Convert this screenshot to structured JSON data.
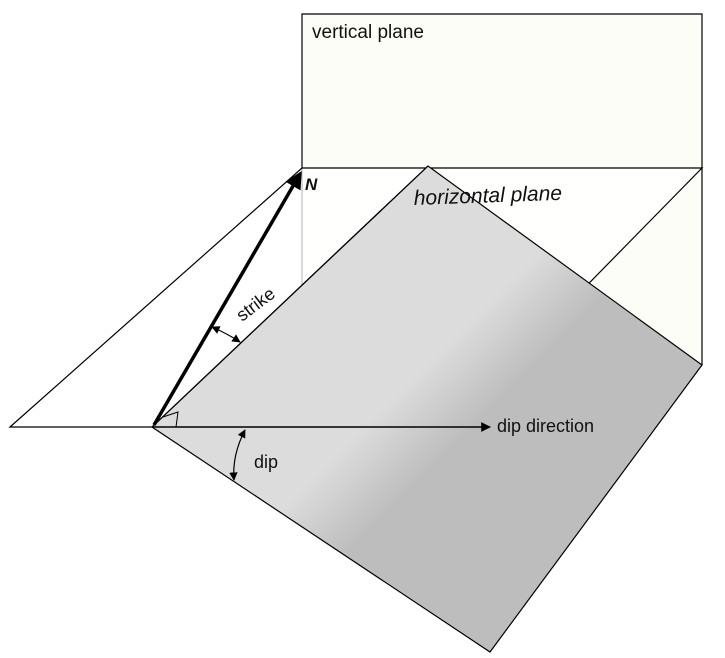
{
  "labels": {
    "vertical_plane": "vertical plane",
    "horizontal_plane": "horizontal plane",
    "north": "N",
    "strike": "strike",
    "dip_direction": "dip direction",
    "dip": "dip"
  },
  "colors": {
    "vertical_plane_fill": "#fdfdf8",
    "horizontal_plane_fill": "#ffffff",
    "dipping_plane_upper": "#dcdcdc",
    "dipping_plane_lower": "#bdbdbd",
    "stroke": "#000000"
  }
}
